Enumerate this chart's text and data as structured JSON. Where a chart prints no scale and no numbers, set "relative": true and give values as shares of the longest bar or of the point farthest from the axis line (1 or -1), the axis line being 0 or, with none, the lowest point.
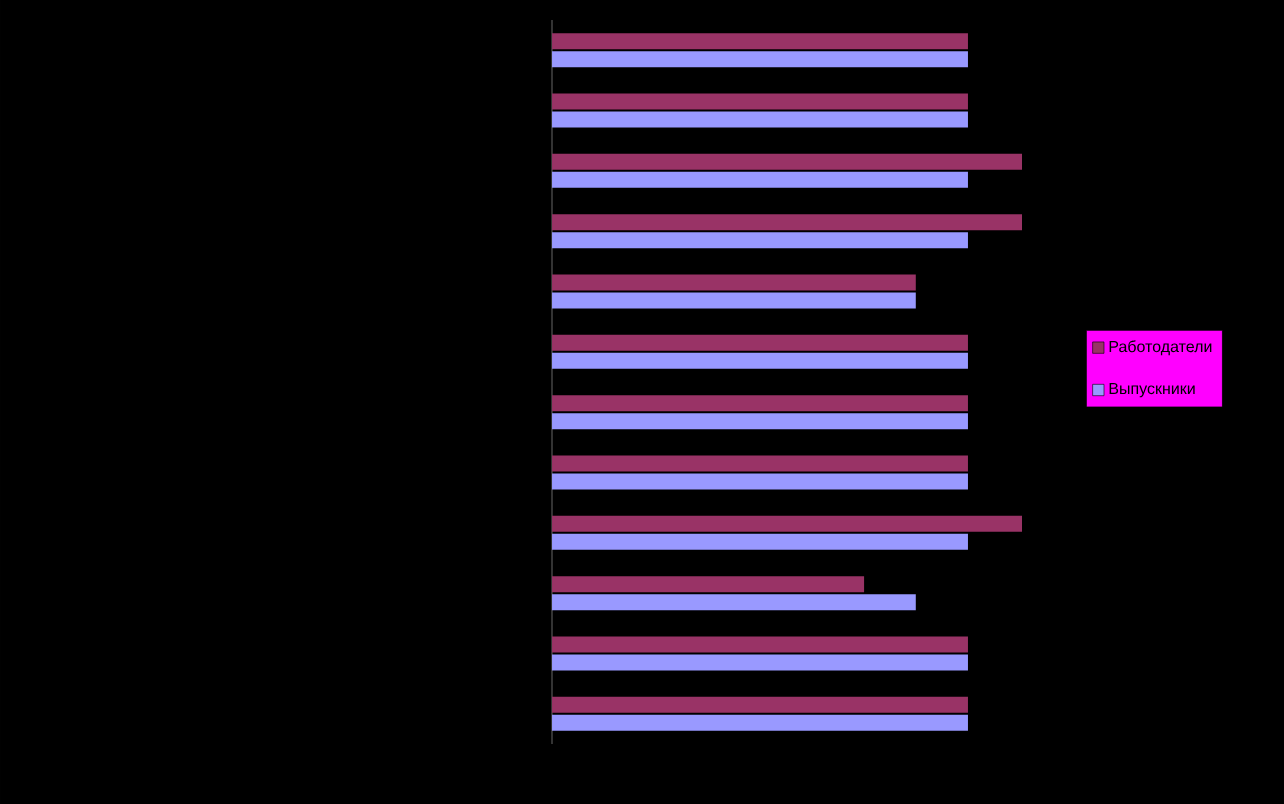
{
  "chart_data": {
    "type": "bar",
    "orientation": "horizontal",
    "relative": true,
    "categories": [
      null,
      null,
      null,
      null,
      null,
      null,
      null,
      null,
      null,
      null,
      null,
      null
    ],
    "series": [
      {
        "name": "Работодатели",
        "color": "#993366",
        "values": [
          0.885,
          0.885,
          1,
          1,
          0.774,
          0.885,
          0.885,
          0.885,
          1,
          0.664,
          0.885,
          0.885
        ]
      },
      {
        "name": "Выпускники",
        "color": "#9999ff",
        "values": [
          0.885,
          0.885,
          0.885,
          0.885,
          0.774,
          0.885,
          0.885,
          0.885,
          0.885,
          0.774,
          0.885,
          0.885
        ]
      }
    ],
    "legend": "right"
  }
}
